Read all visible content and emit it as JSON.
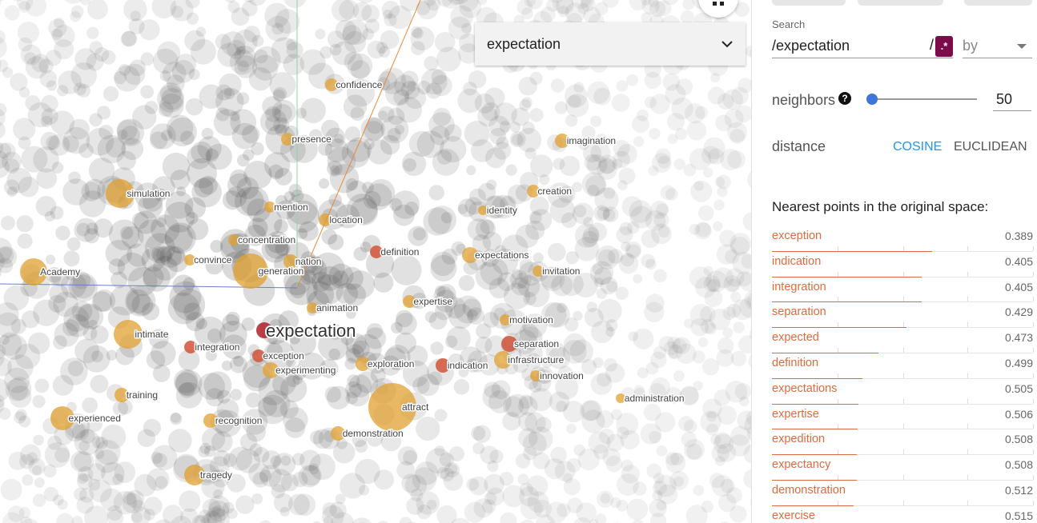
{
  "scatter": {
    "labeled_points": [
      {
        "word": "confidence",
        "kind": "neighbor"
      },
      {
        "word": "presence",
        "kind": "neighbor"
      },
      {
        "word": "imagination",
        "kind": "neighbor"
      },
      {
        "word": "simulation",
        "kind": "neighbor"
      },
      {
        "word": "creation",
        "kind": "neighbor"
      },
      {
        "word": "mention",
        "kind": "neighbor"
      },
      {
        "word": "identity",
        "kind": "neighbor"
      },
      {
        "word": "location",
        "kind": "neighbor"
      },
      {
        "word": "concentration",
        "kind": "neighbor"
      },
      {
        "word": "definition",
        "kind": "close"
      },
      {
        "word": "expectations",
        "kind": "neighbor"
      },
      {
        "word": "convince",
        "kind": "neighbor"
      },
      {
        "word": "nation",
        "kind": "neighbor"
      },
      {
        "word": "Academy",
        "kind": "neighbor"
      },
      {
        "word": "generation",
        "kind": "neighbor"
      },
      {
        "word": "invitation",
        "kind": "neighbor"
      },
      {
        "word": "animation",
        "kind": "neighbor"
      },
      {
        "word": "expertise",
        "kind": "neighbor"
      },
      {
        "word": "motivation",
        "kind": "neighbor"
      },
      {
        "word": "intimate",
        "kind": "neighbor"
      },
      {
        "word": "expectation",
        "kind": "focus"
      },
      {
        "word": "separation",
        "kind": "close"
      },
      {
        "word": "integration",
        "kind": "close"
      },
      {
        "word": "exception",
        "kind": "close"
      },
      {
        "word": "infrastructure",
        "kind": "neighbor"
      },
      {
        "word": "experimenting",
        "kind": "neighbor"
      },
      {
        "word": "exploration",
        "kind": "neighbor"
      },
      {
        "word": "indication",
        "kind": "close"
      },
      {
        "word": "innovation",
        "kind": "neighbor"
      },
      {
        "word": "administration",
        "kind": "neighbor"
      },
      {
        "word": "training",
        "kind": "neighbor"
      },
      {
        "word": "attract",
        "kind": "neighbor"
      },
      {
        "word": "experienced",
        "kind": "neighbor"
      },
      {
        "word": "recognition",
        "kind": "neighbor"
      },
      {
        "word": "demonstration",
        "kind": "neighbor"
      },
      {
        "word": "tragedy",
        "kind": "neighbor"
      }
    ]
  },
  "selector": {
    "value": "expectation"
  },
  "panel": {
    "search_label": "Search",
    "search_value": "/expectation",
    "search_suffix": "/",
    "regex_label": ".*",
    "by_placeholder": "by",
    "neighbors_label": "neighbors",
    "neighbors_value": "50",
    "neighbors_fraction": 0.0,
    "distance_label": "distance",
    "cosine_label": "COSINE",
    "euclidean_label": "EUCLIDEAN",
    "nearest_title": "Nearest points in the original space:",
    "nearest": [
      {
        "word": "exception",
        "score": "0.389"
      },
      {
        "word": "indication",
        "score": "0.405"
      },
      {
        "word": "integration",
        "score": "0.405"
      },
      {
        "word": "separation",
        "score": "0.429"
      },
      {
        "word": "expected",
        "score": "0.473"
      },
      {
        "word": "definition",
        "score": "0.499"
      },
      {
        "word": "expectations",
        "score": "0.505"
      },
      {
        "word": "expertise",
        "score": "0.506"
      },
      {
        "word": "expedition",
        "score": "0.508"
      },
      {
        "word": "expectancy",
        "score": "0.508"
      },
      {
        "word": "demonstration",
        "score": "0.512"
      },
      {
        "word": "exercise",
        "score": "0.515"
      }
    ]
  },
  "colors": {
    "accent_link": "#2196f3",
    "neighbor_point": "#e0a030",
    "close_point": "#d2553a",
    "regex_button": "#7d0b4c",
    "background_point": "#808080"
  }
}
